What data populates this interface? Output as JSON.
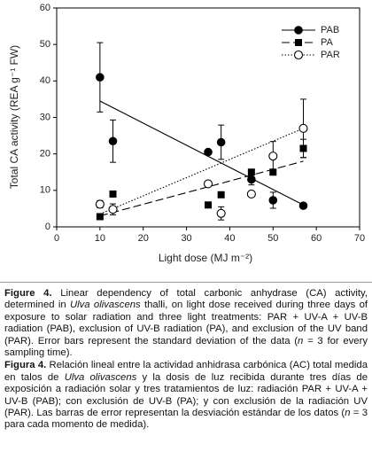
{
  "chart_data": {
    "type": "scatter",
    "xlabel": "Light dose (MJ m⁻²)",
    "ylabel": "Total CA activity (REA g⁻¹ FW)",
    "xlim": [
      0,
      70
    ],
    "xticks": [
      0,
      10,
      20,
      30,
      40,
      50,
      60,
      70
    ],
    "ylim": [
      0,
      60
    ],
    "yticks": [
      0,
      10,
      20,
      30,
      40,
      50,
      60
    ],
    "legend": "upper right",
    "series": [
      {
        "name": "PAB",
        "marker": "circle",
        "color": "#000000",
        "line": "solid",
        "x": [
          10,
          13,
          35,
          38,
          45,
          50,
          57
        ],
        "values": [
          41,
          23.5,
          20.5,
          23.2,
          13,
          7.3,
          5.8
        ],
        "errors": [
          9.5,
          5.8,
          null,
          4.7,
          1.5,
          2.2,
          null
        ],
        "trend": {
          "x": [
            10,
            57
          ],
          "values": [
            34.5,
            6
          ]
        }
      },
      {
        "name": "PA",
        "marker": "square",
        "color": "#000000",
        "line": "dashed",
        "x": [
          10,
          13,
          35,
          38,
          45,
          50,
          57
        ],
        "values": [
          2.8,
          9,
          6,
          8.8,
          15,
          15,
          21.5
        ],
        "errors": [
          null,
          null,
          null,
          null,
          null,
          null,
          2.5
        ],
        "trend": {
          "x": [
            10,
            57
          ],
          "values": [
            3,
            18
          ]
        }
      },
      {
        "name": "PAR",
        "marker": "open-circle",
        "color": "#000000",
        "line": "dotted",
        "x": [
          10,
          13,
          35,
          38,
          45,
          50,
          57
        ],
        "values": [
          6.2,
          4.8,
          11.8,
          3.7,
          9,
          19.4,
          27
        ],
        "errors": [
          1,
          1.5,
          null,
          1.8,
          null,
          4,
          8
        ],
        "trend": {
          "x": [
            10,
            57
          ],
          "values": [
            3.5,
            27
          ]
        }
      }
    ]
  },
  "caption": {
    "en": [
      {
        "text": "Figure 4.",
        "style": "bold"
      },
      {
        "text": " Linear dependency of total carbonic anhydrase (CA) activity, determined in "
      },
      {
        "text": "Ulva olivascens",
        "style": "italic"
      },
      {
        "text": " thalli, on light dose received during three days of exposure to solar radiation and three light treatments: PAR + UV-A + UV-B radiation (PAB), exclusion of UV-B radiation (PA), and exclusion of the UV band (PAR). Error bars represent the standard deviation of the data ("
      },
      {
        "text": "n",
        "style": "italic"
      },
      {
        "text": " = 3 for every sampling time)."
      }
    ],
    "es": [
      {
        "text": "Figura 4.",
        "style": "bold"
      },
      {
        "text": " Relación lineal entre la actividad anhidrasa carbónica (AC) total medida en talos de "
      },
      {
        "text": "Ulva olivascens",
        "style": "italic"
      },
      {
        "text": " y la dosis de luz recibida durante tres días de exposición a radiación solar y tres tratamientos de luz: radiación PAR + UV-A + UV-B (PAB); con exclusión de UV-B (PA); y con exclusión de la radiación UV (PAR). Las barras de error representan la desviación estándar de los datos ("
      },
      {
        "text": "n",
        "style": "italic"
      },
      {
        "text": " = 3 para cada momento de medida)."
      }
    ]
  }
}
